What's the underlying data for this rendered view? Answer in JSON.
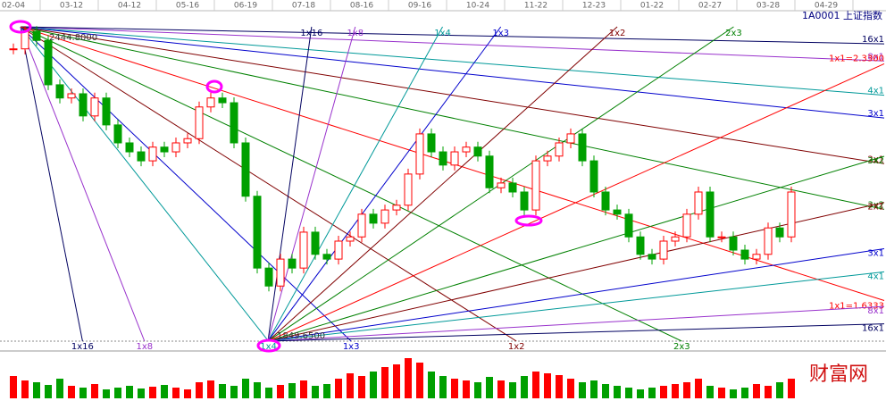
{
  "chart_data": {
    "type": "candlestick",
    "title": "1A0001  上证指数",
    "categories": [
      "02-04",
      null,
      null,
      null,
      null,
      "03-12",
      null,
      null,
      null,
      null,
      "04-12",
      null,
      null,
      null,
      null,
      "05-16",
      null,
      null,
      null,
      null,
      "06-19",
      null,
      null,
      null,
      null,
      "07-18",
      null,
      null,
      null,
      null,
      "08-16",
      null,
      null,
      null,
      null,
      "09-16",
      null,
      null,
      null,
      null,
      "10-24",
      null,
      null,
      null,
      null,
      "11-22",
      null,
      null,
      null,
      null,
      "12-23",
      null,
      null,
      null,
      null,
      "01-22",
      null,
      null,
      null,
      null,
      "02-27",
      null,
      null,
      null,
      null,
      "03-28",
      null,
      null,
      null,
      null,
      "04-29"
    ],
    "values": [
      2403,
      2436,
      2419,
      2335,
      2310,
      2318,
      2276,
      2310,
      2259,
      2225,
      2208,
      2191,
      2217,
      2208,
      2225,
      2233,
      2293,
      2310,
      2301,
      2225,
      2124,
      1988,
      1954,
      2005,
      1988,
      2056,
      2014,
      2005,
      2039,
      2047,
      2090,
      2073,
      2098,
      2107,
      2166,
      2242,
      2208,
      2183,
      2208,
      2217,
      2200,
      2140,
      2149,
      2132,
      2098,
      2191,
      2200,
      2225,
      2242,
      2191,
      2132,
      2098,
      2090,
      2047,
      2014,
      2005,
      2039,
      2047,
      2090,
      2132,
      2047,
      2047,
      2022,
      2005,
      2014,
      2064,
      2047,
      2132,
      null,
      null,
      null
    ],
    "volume": [
      25,
      20,
      18,
      15,
      22,
      14,
      12,
      16,
      10,
      12,
      14,
      11,
      13,
      15,
      12,
      10,
      18,
      20,
      16,
      14,
      22,
      18,
      12,
      15,
      17,
      20,
      14,
      16,
      22,
      28,
      25,
      30,
      35,
      38,
      45,
      40,
      30,
      25,
      22,
      20,
      18,
      24,
      20,
      18,
      25,
      30,
      28,
      26,
      22,
      18,
      20,
      16,
      14,
      12,
      10,
      12,
      14,
      16,
      18,
      22,
      14,
      12,
      10,
      12,
      16,
      14,
      18,
      22,
      null,
      null,
      null
    ],
    "ylim": [
      1832.7,
      2478.6
    ],
    "up_color": "#ff0000",
    "down_color": "#00a000",
    "high": {
      "value": 2444.8,
      "label": "2444.8000"
    },
    "low": {
      "value": 1849.65,
      "label": "1849.6500"
    },
    "fan_labels": [
      "1x16",
      "1x8",
      "1x4",
      "1x3",
      "1x2",
      "2x3",
      "3x2",
      "2x1",
      "3x1",
      "4x1",
      "8x1",
      "16x1"
    ],
    "unit_labels": [
      "1x1=1.6333",
      "1x1=2.3300"
    ],
    "watermark": "财富网"
  }
}
